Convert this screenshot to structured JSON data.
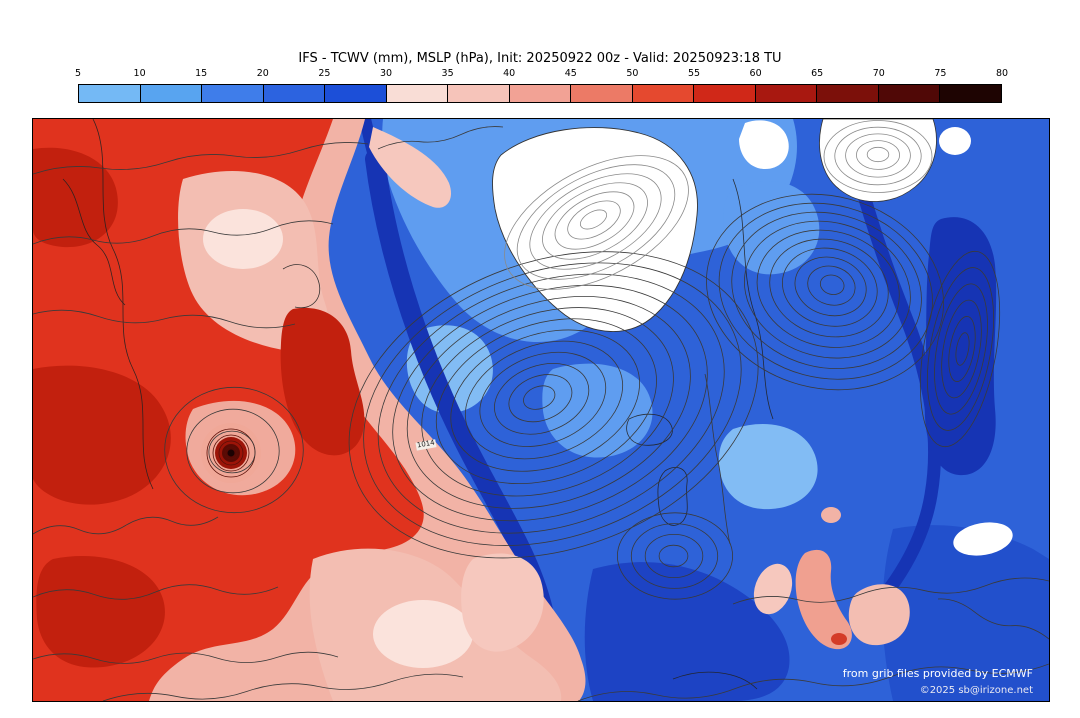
{
  "title": "IFS - TCWV (mm), MSLP (hPa), Init: 20250922 00z - Valid: 20250923:18 TU",
  "colorbar": {
    "ticks": [
      "5",
      "10",
      "15",
      "20",
      "25",
      "30",
      "35",
      "40",
      "45",
      "50",
      "55",
      "60",
      "65",
      "70",
      "75",
      "80"
    ],
    "segment_colors": [
      "#74b9f5",
      "#58a4f0",
      "#3f7dea",
      "#2c63e0",
      "#1c4fd8",
      "#f9ddd6",
      "#f6c4ba",
      "#f2a295",
      "#ec7a66",
      "#e5492f",
      "#d02818",
      "#a81810",
      "#7c100a",
      "#500806",
      "#1e0402"
    ]
  },
  "map": {
    "contour_label": "1014",
    "attribution_line1": "from grib files provided by ECMWF",
    "attribution_line2": "©2025 sb@irizone.net"
  },
  "palette": {
    "cold_base": "#2e62d8",
    "cold_light": "#5f9df0",
    "cold_lighter": "#82bcf4",
    "cold_dark": "#1634b4",
    "cold_mid_dark": "#1d43c4",
    "warm_base": "#f2b3a6",
    "warm_red": "#e0331e",
    "warm_deep_red": "#c2200e",
    "warm_pale": "#f6c8be",
    "ice_white": "#ffffff",
    "contour": "#3a3a3a"
  },
  "chart_data": {
    "type": "heatmap",
    "title": "IFS - TCWV (mm), MSLP (hPa), Init: 20250922 00z - Valid: 20250923:18 TU",
    "variables": [
      "TCWV (mm) shaded",
      "MSLP (hPa) contours"
    ],
    "model": "IFS",
    "init": "20250922 00z",
    "valid": "20250923:18 TU",
    "colorbar_ticks": [
      5,
      10,
      15,
      20,
      25,
      30,
      35,
      40,
      45,
      50,
      55,
      60,
      65,
      70,
      75,
      80
    ],
    "colorbar_range": [
      5,
      80
    ],
    "legend_position": "top",
    "visible_contour_labels": [
      "1014"
    ],
    "pattern": "High TCWV (red, 45-80mm) over western Atlantic with tropical cyclone; low TCWV (blue, 5-30mm) over Greenland, Iceland, Scandinavia and Europe; white (<5mm) over Greenland ice sheet"
  }
}
